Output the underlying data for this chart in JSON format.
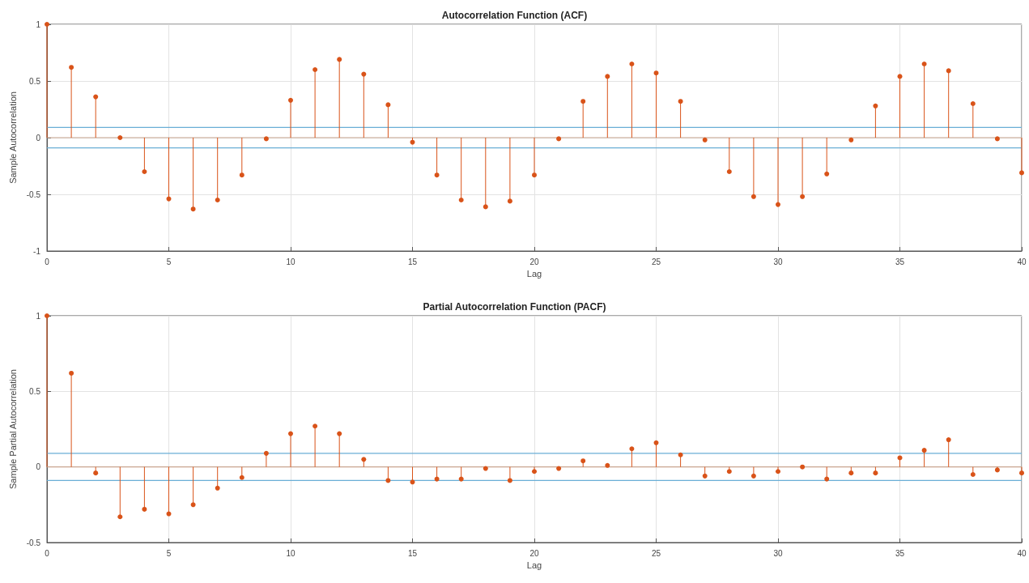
{
  "chart_data": [
    {
      "type": "lollipop",
      "title": "Autocorrelation Function (ACF)",
      "xlabel": "Lag",
      "ylabel": "Sample Autocorrelation",
      "x": [
        0,
        1,
        2,
        3,
        4,
        5,
        6,
        7,
        8,
        9,
        10,
        11,
        12,
        13,
        14,
        15,
        16,
        17,
        18,
        19,
        20,
        21,
        22,
        23,
        24,
        25,
        26,
        27,
        28,
        29,
        30,
        31,
        32,
        33,
        34,
        35,
        36,
        37,
        38,
        39,
        40
      ],
      "series": [
        {
          "color": "#d95319",
          "values": [
            1,
            0.62,
            0.36,
            0.0,
            -0.3,
            -0.54,
            -0.63,
            -0.55,
            -0.33,
            -0.01,
            0.33,
            0.6,
            0.69,
            0.56,
            0.29,
            -0.04,
            -0.33,
            -0.55,
            -0.61,
            -0.56,
            -0.33,
            -0.01,
            0.32,
            0.54,
            0.65,
            0.57,
            0.32,
            -0.02,
            -0.3,
            -0.52,
            -0.59,
            -0.52,
            -0.32,
            -0.02,
            0.28,
            0.54,
            0.65,
            0.59,
            0.3,
            -0.01,
            -0.31
          ]
        }
      ],
      "xlim": [
        0,
        40
      ],
      "xticks": [
        0,
        5,
        10,
        15,
        20,
        25,
        30,
        35,
        40
      ],
      "ylim": [
        -1,
        1
      ],
      "yticks": [
        -1,
        -0.5,
        0,
        0.5,
        1
      ],
      "ref_lines": [
        {
          "axis": "y",
          "value": 0.09,
          "color": "#6aaed6"
        },
        {
          "axis": "y",
          "value": -0.09,
          "color": "#6aaed6"
        },
        {
          "axis": "y",
          "value": 0,
          "color": "#c9a58f"
        }
      ],
      "grid": true,
      "marker": "circle"
    },
    {
      "type": "lollipop",
      "title": "Partial Autocorrelation Function (PACF)",
      "xlabel": "Lag",
      "ylabel": "Sample Partial Autocorrelation",
      "x": [
        0,
        1,
        2,
        3,
        4,
        5,
        6,
        7,
        8,
        9,
        10,
        11,
        12,
        13,
        14,
        15,
        16,
        17,
        18,
        19,
        20,
        21,
        22,
        23,
        24,
        25,
        26,
        27,
        28,
        29,
        30,
        31,
        32,
        33,
        34,
        35,
        36,
        37,
        38,
        39,
        40
      ],
      "series": [
        {
          "color": "#d95319",
          "values": [
            1,
            0.62,
            -0.04,
            -0.33,
            -0.28,
            -0.31,
            -0.25,
            -0.14,
            -0.07,
            0.09,
            0.22,
            0.27,
            0.22,
            0.05,
            -0.09,
            -0.1,
            -0.08,
            -0.08,
            -0.01,
            -0.09,
            -0.03,
            -0.01,
            0.04,
            0.01,
            0.12,
            0.16,
            0.08,
            -0.06,
            -0.03,
            -0.06,
            -0.03,
            0.0,
            -0.08,
            -0.04,
            -0.04,
            0.06,
            0.11,
            0.18,
            -0.05,
            -0.02,
            -0.04
          ]
        }
      ],
      "xlim": [
        0,
        40
      ],
      "xticks": [
        0,
        5,
        10,
        15,
        20,
        25,
        30,
        35,
        40
      ],
      "ylim": [
        -0.5,
        1
      ],
      "yticks": [
        -0.5,
        0,
        0.5,
        1
      ],
      "ref_lines": [
        {
          "axis": "y",
          "value": 0.09,
          "color": "#6aaed6"
        },
        {
          "axis": "y",
          "value": -0.09,
          "color": "#6aaed6"
        },
        {
          "axis": "y",
          "value": 0,
          "color": "#c9a58f"
        }
      ],
      "grid": true,
      "marker": "circle"
    }
  ]
}
